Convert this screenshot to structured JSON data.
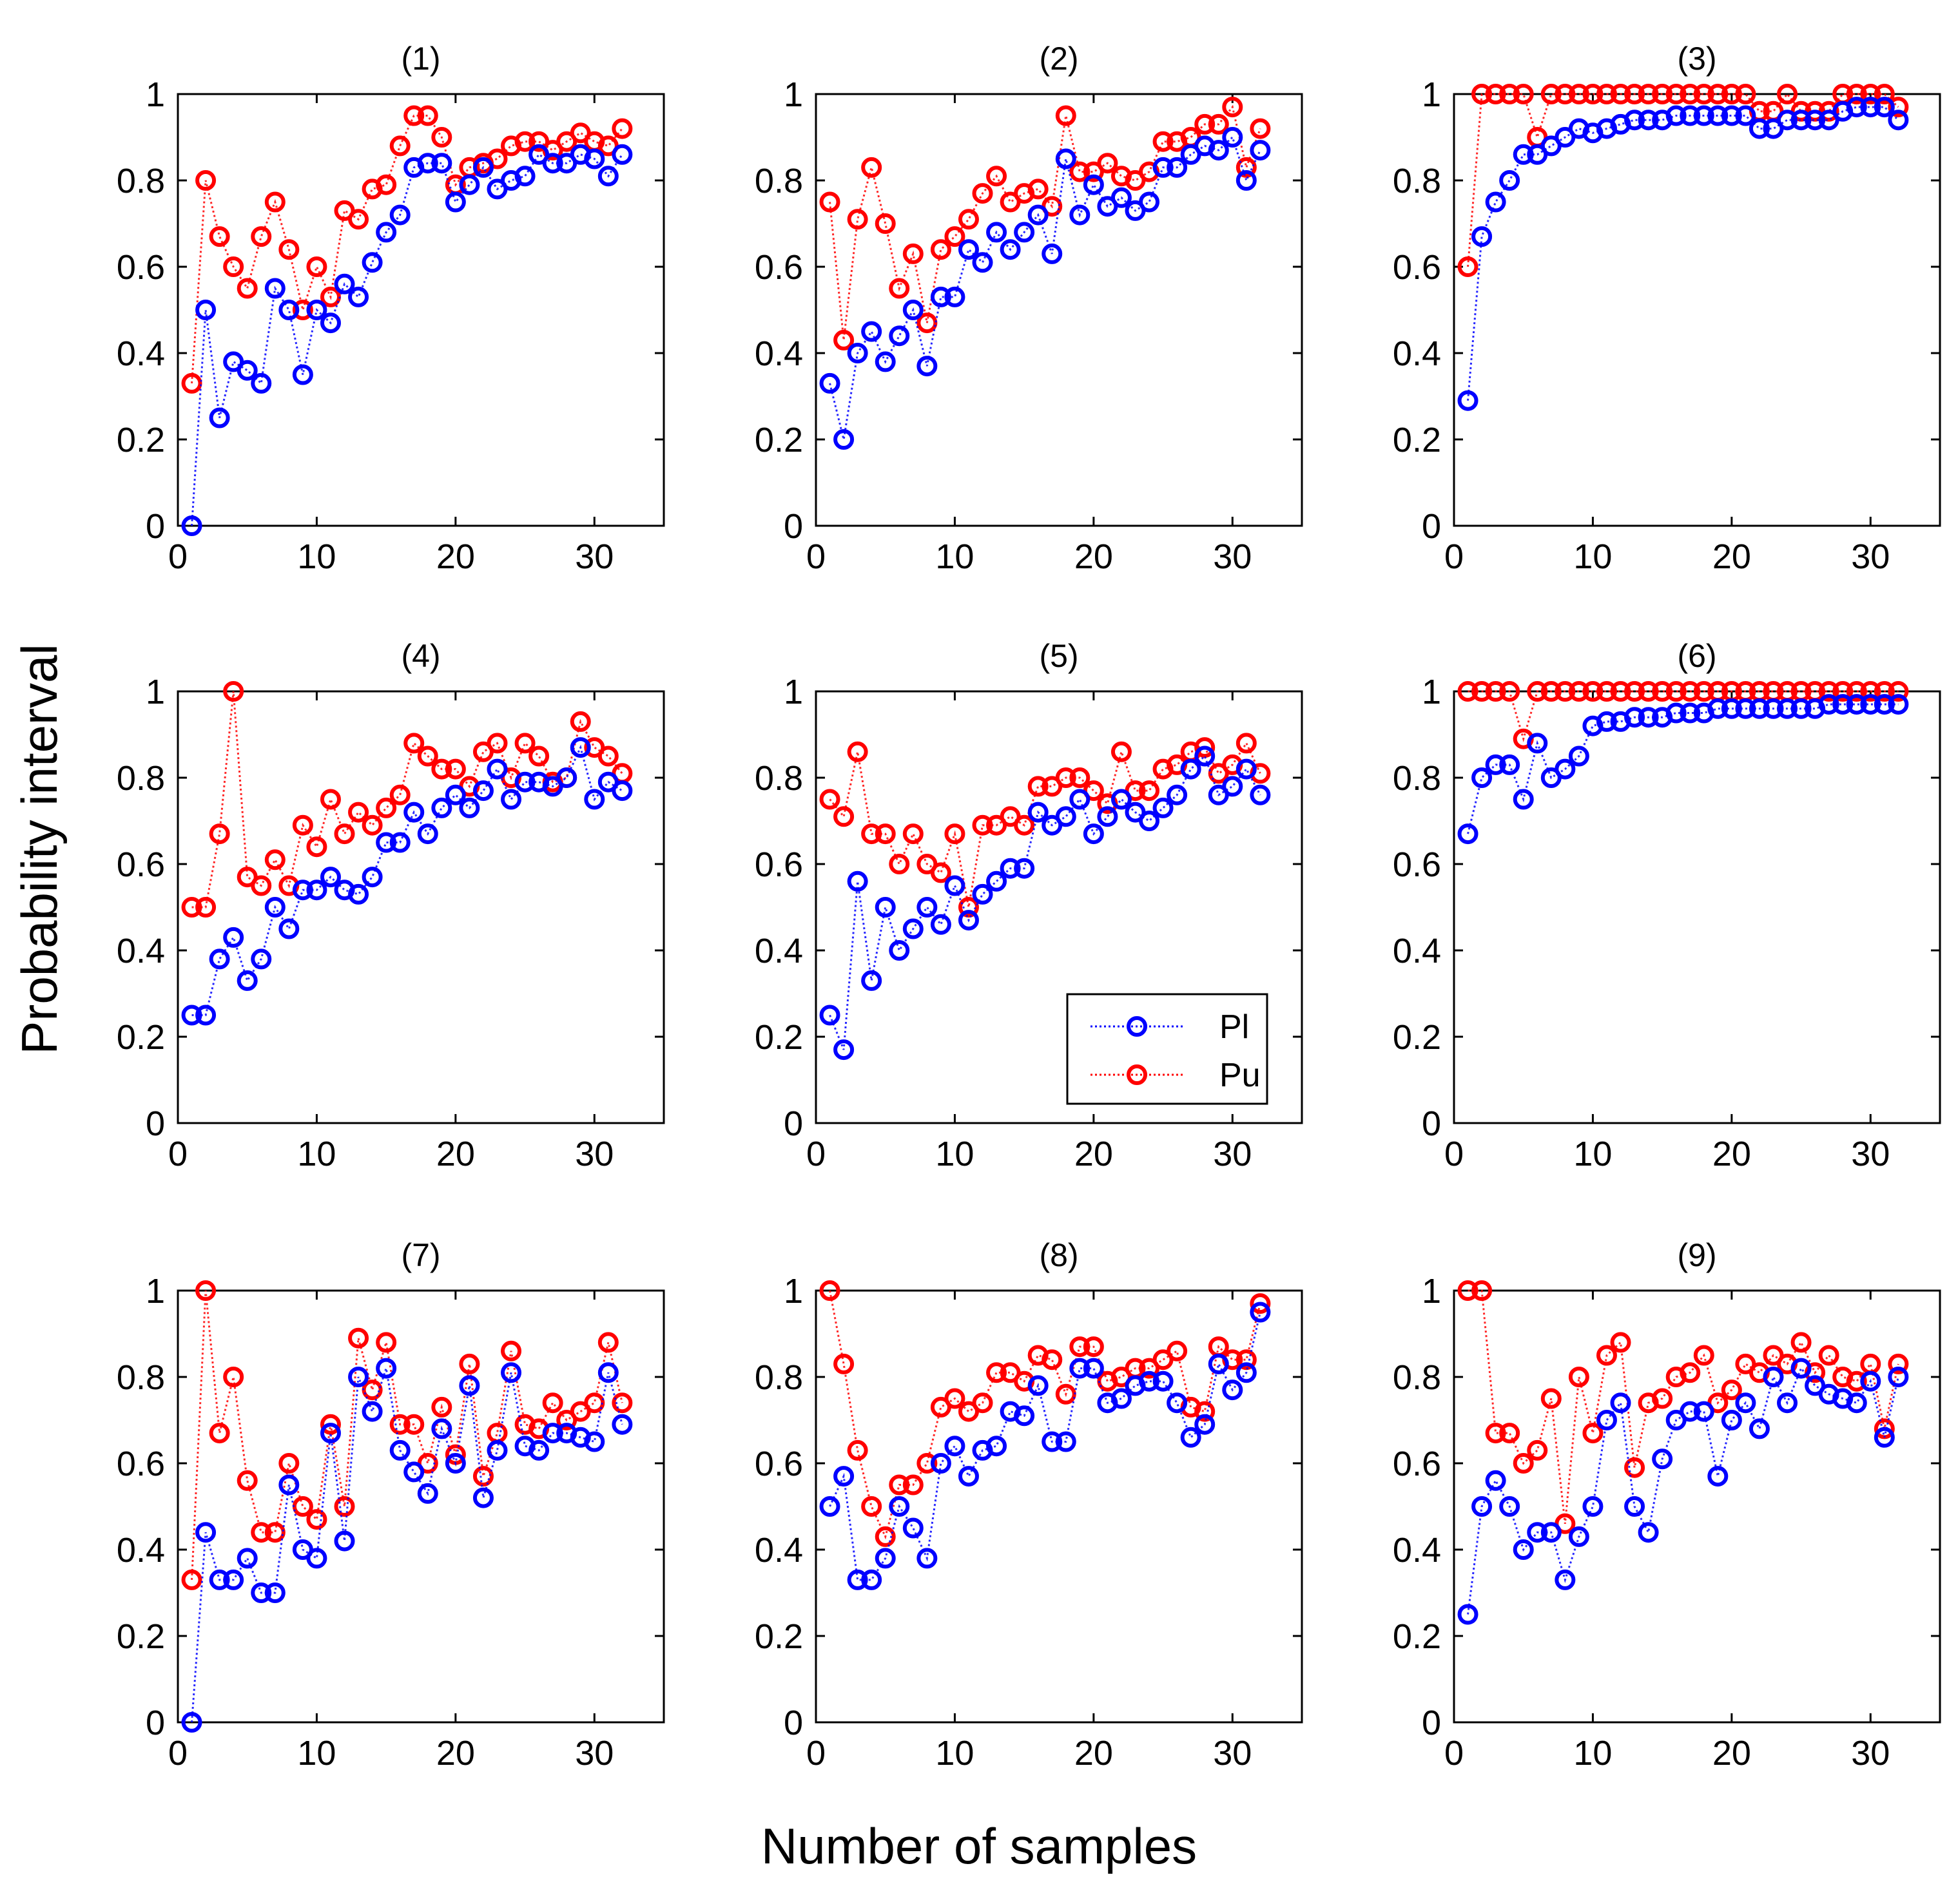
{
  "figure": {
    "ylabel": "Probability interval",
    "xlabel": "Number of samples",
    "series_colors": {
      "Pl": "#0000ff",
      "Pu": "#ff0000"
    },
    "legend": [
      {
        "name": "Pl",
        "color": "#0000ff"
      },
      {
        "name": "Pu",
        "color": "#ff0000"
      }
    ]
  },
  "chart_data": [
    {
      "type": "scatter",
      "title": "(1)",
      "xlim": [
        0,
        35
      ],
      "ylim": [
        0,
        1
      ],
      "xticks": [
        0,
        10,
        20,
        30
      ],
      "yticks": [
        0,
        0.2,
        0.4,
        0.6,
        0.8,
        1
      ],
      "x": [
        1,
        2,
        3,
        4,
        5,
        6,
        7,
        8,
        9,
        10,
        11,
        12,
        13,
        14,
        15,
        16,
        17,
        18,
        19,
        20,
        21,
        22,
        23,
        24,
        25,
        26,
        27,
        28,
        29,
        30,
        31,
        32
      ],
      "series": [
        {
          "name": "Pl",
          "values": [
            0,
            0.5,
            0.25,
            0.38,
            0.36,
            0.33,
            0.55,
            0.5,
            0.35,
            0.5,
            0.47,
            0.56,
            0.53,
            0.61,
            0.68,
            0.72,
            0.83,
            0.84,
            0.84,
            0.75,
            0.79,
            0.83,
            0.78,
            0.8,
            0.81,
            0.86,
            0.84,
            0.84,
            0.86,
            0.85,
            0.81,
            0.86
          ]
        },
        {
          "name": "Pu",
          "values": [
            0.33,
            0.8,
            0.67,
            0.6,
            0.55,
            0.67,
            0.75,
            0.64,
            0.5,
            0.6,
            0.53,
            0.73,
            0.71,
            0.78,
            0.79,
            0.88,
            0.95,
            0.95,
            0.9,
            0.79,
            0.83,
            0.84,
            0.85,
            0.88,
            0.89,
            0.89,
            0.87,
            0.89,
            0.91,
            0.89,
            0.88,
            0.92
          ]
        }
      ]
    },
    {
      "type": "scatter",
      "title": "(2)",
      "xlim": [
        0,
        35
      ],
      "ylim": [
        0,
        1
      ],
      "xticks": [
        0,
        10,
        20,
        30
      ],
      "yticks": [
        0,
        0.2,
        0.4,
        0.6,
        0.8,
        1
      ],
      "x": [
        1,
        2,
        3,
        4,
        5,
        6,
        7,
        8,
        9,
        10,
        11,
        12,
        13,
        14,
        15,
        16,
        17,
        18,
        19,
        20,
        21,
        22,
        23,
        24,
        25,
        26,
        27,
        28,
        29,
        30,
        31,
        32
      ],
      "series": [
        {
          "name": "Pl",
          "values": [
            0.33,
            0.2,
            0.4,
            0.45,
            0.38,
            0.44,
            0.5,
            0.37,
            0.53,
            0.53,
            0.64,
            0.61,
            0.68,
            0.64,
            0.68,
            0.72,
            0.63,
            0.85,
            0.72,
            0.79,
            0.74,
            0.76,
            0.73,
            0.75,
            0.83,
            0.83,
            0.86,
            0.88,
            0.87,
            0.9,
            0.8,
            0.87
          ]
        },
        {
          "name": "Pu",
          "values": [
            0.75,
            0.43,
            0.71,
            0.83,
            0.7,
            0.55,
            0.63,
            0.47,
            0.64,
            0.67,
            0.71,
            0.77,
            0.81,
            0.75,
            0.77,
            0.78,
            0.74,
            0.95,
            0.82,
            0.82,
            0.84,
            0.81,
            0.8,
            0.82,
            0.89,
            0.89,
            0.9,
            0.93,
            0.93,
            0.97,
            0.83,
            0.92
          ]
        }
      ]
    },
    {
      "type": "scatter",
      "title": "(3)",
      "xlim": [
        0,
        35
      ],
      "ylim": [
        0,
        1
      ],
      "xticks": [
        0,
        10,
        20,
        30
      ],
      "yticks": [
        0,
        0.2,
        0.4,
        0.6,
        0.8,
        1
      ],
      "x": [
        1,
        2,
        3,
        4,
        5,
        6,
        7,
        8,
        9,
        10,
        11,
        12,
        13,
        14,
        15,
        16,
        17,
        18,
        19,
        20,
        21,
        22,
        23,
        24,
        25,
        26,
        27,
        28,
        29,
        30,
        31,
        32
      ],
      "series": [
        {
          "name": "Pl",
          "values": [
            0.29,
            0.67,
            0.75,
            0.8,
            0.86,
            0.86,
            0.88,
            0.9,
            0.92,
            0.91,
            0.92,
            0.93,
            0.94,
            0.94,
            0.94,
            0.95,
            0.95,
            0.95,
            0.95,
            0.95,
            0.95,
            0.92,
            0.92,
            0.94,
            0.94,
            0.94,
            0.94,
            0.96,
            0.97,
            0.97,
            0.97,
            0.94
          ]
        },
        {
          "name": "Pu",
          "values": [
            0.6,
            1,
            1,
            1,
            1,
            0.9,
            1,
            1,
            1,
            1,
            1,
            1,
            1,
            1,
            1,
            1,
            1,
            1,
            1,
            1,
            1,
            0.96,
            0.96,
            1,
            0.96,
            0.96,
            0.96,
            1,
            1,
            1,
            1,
            0.97
          ]
        }
      ]
    },
    {
      "type": "scatter",
      "title": "(4)",
      "xlim": [
        0,
        35
      ],
      "ylim": [
        0,
        1
      ],
      "xticks": [
        0,
        10,
        20,
        30
      ],
      "yticks": [
        0,
        0.2,
        0.4,
        0.6,
        0.8,
        1
      ],
      "x": [
        1,
        2,
        3,
        4,
        5,
        6,
        7,
        8,
        9,
        10,
        11,
        12,
        13,
        14,
        15,
        16,
        17,
        18,
        19,
        20,
        21,
        22,
        23,
        24,
        25,
        26,
        27,
        28,
        29,
        30,
        31,
        32
      ],
      "series": [
        {
          "name": "Pl",
          "values": [
            0.25,
            0.25,
            0.38,
            0.43,
            0.33,
            0.38,
            0.5,
            0.45,
            0.54,
            0.54,
            0.57,
            0.54,
            0.53,
            0.57,
            0.65,
            0.65,
            0.72,
            0.67,
            0.73,
            0.76,
            0.73,
            0.77,
            0.82,
            0.75,
            0.79,
            0.79,
            0.78,
            0.8,
            0.87,
            0.75,
            0.79,
            0.77
          ]
        },
        {
          "name": "Pu",
          "values": [
            0.5,
            0.5,
            0.67,
            1,
            0.57,
            0.55,
            0.61,
            0.55,
            0.69,
            0.64,
            0.75,
            0.67,
            0.72,
            0.69,
            0.73,
            0.76,
            0.88,
            0.85,
            0.82,
            0.82,
            0.78,
            0.86,
            0.88,
            0.8,
            0.88,
            0.85,
            0.79,
            0.8,
            0.93,
            0.87,
            0.85,
            0.81
          ]
        }
      ]
    },
    {
      "type": "scatter",
      "title": "(5)",
      "xlim": [
        0,
        35
      ],
      "ylim": [
        0,
        1
      ],
      "xticks": [
        0,
        10,
        20,
        30
      ],
      "yticks": [
        0,
        0.2,
        0.4,
        0.6,
        0.8,
        1
      ],
      "x": [
        1,
        2,
        3,
        4,
        5,
        6,
        7,
        8,
        9,
        10,
        11,
        12,
        13,
        14,
        15,
        16,
        17,
        18,
        19,
        20,
        21,
        22,
        23,
        24,
        25,
        26,
        27,
        28,
        29,
        30,
        31,
        32
      ],
      "series": [
        {
          "name": "Pl",
          "values": [
            0.25,
            0.17,
            0.56,
            0.33,
            0.5,
            0.4,
            0.45,
            0.5,
            0.46,
            0.55,
            0.47,
            0.53,
            0.56,
            0.59,
            0.59,
            0.72,
            0.69,
            0.71,
            0.75,
            0.67,
            0.71,
            0.75,
            0.72,
            0.7,
            0.73,
            0.76,
            0.82,
            0.85,
            0.76,
            0.78,
            0.82,
            0.76
          ]
        },
        {
          "name": "Pu",
          "values": [
            0.75,
            0.71,
            0.86,
            0.67,
            0.67,
            0.6,
            0.67,
            0.6,
            0.58,
            0.67,
            0.5,
            0.69,
            0.69,
            0.71,
            0.69,
            0.78,
            0.78,
            0.8,
            0.8,
            0.77,
            0.74,
            0.86,
            0.77,
            0.77,
            0.82,
            0.83,
            0.86,
            0.87,
            0.81,
            0.83,
            0.88,
            0.81
          ]
        }
      ]
    },
    {
      "type": "scatter",
      "title": "(6)",
      "xlim": [
        0,
        35
      ],
      "ylim": [
        0,
        1
      ],
      "xticks": [
        0,
        10,
        20,
        30
      ],
      "yticks": [
        0,
        0.2,
        0.4,
        0.6,
        0.8,
        1
      ],
      "x": [
        1,
        2,
        3,
        4,
        5,
        6,
        7,
        8,
        9,
        10,
        11,
        12,
        13,
        14,
        15,
        16,
        17,
        18,
        19,
        20,
        21,
        22,
        23,
        24,
        25,
        26,
        27,
        28,
        29,
        30,
        31,
        32
      ],
      "series": [
        {
          "name": "Pl",
          "values": [
            0.67,
            0.8,
            0.83,
            0.83,
            0.75,
            0.88,
            0.8,
            0.82,
            0.85,
            0.92,
            0.93,
            0.93,
            0.94,
            0.94,
            0.94,
            0.95,
            0.95,
            0.95,
            0.96,
            0.96,
            0.96,
            0.96,
            0.96,
            0.96,
            0.96,
            0.96,
            0.97,
            0.97,
            0.97,
            0.97,
            0.97,
            0.97
          ]
        },
        {
          "name": "Pu",
          "values": [
            1,
            1,
            1,
            1,
            0.89,
            1,
            1,
            1,
            1,
            1,
            1,
            1,
            1,
            1,
            1,
            1,
            1,
            1,
            1,
            1,
            1,
            1,
            1,
            1,
            1,
            1,
            1,
            1,
            1,
            1,
            1,
            1
          ]
        }
      ]
    },
    {
      "type": "scatter",
      "title": "(7)",
      "xlim": [
        0,
        35
      ],
      "ylim": [
        0,
        1
      ],
      "xticks": [
        0,
        10,
        20,
        30
      ],
      "yticks": [
        0,
        0.2,
        0.4,
        0.6,
        0.8,
        1
      ],
      "x": [
        1,
        2,
        3,
        4,
        5,
        6,
        7,
        8,
        9,
        10,
        11,
        12,
        13,
        14,
        15,
        16,
        17,
        18,
        19,
        20,
        21,
        22,
        23,
        24,
        25,
        26,
        27,
        28,
        29,
        30,
        31,
        32
      ],
      "series": [
        {
          "name": "Pl",
          "values": [
            0,
            0.44,
            0.33,
            0.33,
            0.38,
            0.3,
            0.3,
            0.55,
            0.4,
            0.38,
            0.67,
            0.42,
            0.8,
            0.72,
            0.82,
            0.63,
            0.58,
            0.53,
            0.68,
            0.6,
            0.78,
            0.52,
            0.63,
            0.81,
            0.64,
            0.63,
            0.67,
            0.67,
            0.66,
            0.65,
            0.81,
            0.69
          ]
        },
        {
          "name": "Pu",
          "values": [
            0.33,
            1,
            0.67,
            0.8,
            0.56,
            0.44,
            0.44,
            0.6,
            0.5,
            0.47,
            0.69,
            0.5,
            0.89,
            0.77,
            0.88,
            0.69,
            0.69,
            0.6,
            0.73,
            0.62,
            0.83,
            0.57,
            0.67,
            0.86,
            0.69,
            0.68,
            0.74,
            0.7,
            0.72,
            0.74,
            0.88,
            0.74
          ]
        }
      ]
    },
    {
      "type": "scatter",
      "title": "(8)",
      "xlim": [
        0,
        35
      ],
      "ylim": [
        0,
        1
      ],
      "xticks": [
        0,
        10,
        20,
        30
      ],
      "yticks": [
        0,
        0.2,
        0.4,
        0.6,
        0.8,
        1
      ],
      "x": [
        1,
        2,
        3,
        4,
        5,
        6,
        7,
        8,
        9,
        10,
        11,
        12,
        13,
        14,
        15,
        16,
        17,
        18,
        19,
        20,
        21,
        22,
        23,
        24,
        25,
        26,
        27,
        28,
        29,
        30,
        31,
        32
      ],
      "series": [
        {
          "name": "Pl",
          "values": [
            0.5,
            0.57,
            0.33,
            0.33,
            0.38,
            0.5,
            0.45,
            0.38,
            0.6,
            0.64,
            0.57,
            0.63,
            0.64,
            0.72,
            0.71,
            0.78,
            0.65,
            0.65,
            0.82,
            0.82,
            0.74,
            0.75,
            0.78,
            0.79,
            0.79,
            0.74,
            0.66,
            0.69,
            0.83,
            0.77,
            0.81,
            0.95
          ]
        },
        {
          "name": "Pu",
          "values": [
            1,
            0.83,
            0.63,
            0.5,
            0.43,
            0.55,
            0.55,
            0.6,
            0.73,
            0.75,
            0.72,
            0.74,
            0.81,
            0.81,
            0.79,
            0.85,
            0.84,
            0.76,
            0.87,
            0.87,
            0.79,
            0.8,
            0.82,
            0.82,
            0.84,
            0.86,
            0.73,
            0.72,
            0.87,
            0.84,
            0.84,
            0.97
          ]
        }
      ]
    },
    {
      "type": "scatter",
      "title": "(9)",
      "xlim": [
        0,
        35
      ],
      "ylim": [
        0,
        1
      ],
      "xticks": [
        0,
        10,
        20,
        30
      ],
      "yticks": [
        0,
        0.2,
        0.4,
        0.6,
        0.8,
        1
      ],
      "x": [
        1,
        2,
        3,
        4,
        5,
        6,
        7,
        8,
        9,
        10,
        11,
        12,
        13,
        14,
        15,
        16,
        17,
        18,
        19,
        20,
        21,
        22,
        23,
        24,
        25,
        26,
        27,
        28,
        29,
        30,
        31,
        32
      ],
      "series": [
        {
          "name": "Pl",
          "values": [
            0.25,
            0.5,
            0.56,
            0.5,
            0.4,
            0.44,
            0.44,
            0.33,
            0.43,
            0.5,
            0.7,
            0.74,
            0.5,
            0.44,
            0.61,
            0.7,
            0.72,
            0.72,
            0.57,
            0.7,
            0.74,
            0.68,
            0.8,
            0.74,
            0.82,
            0.78,
            0.76,
            0.75,
            0.74,
            0.79,
            0.66,
            0.8
          ]
        },
        {
          "name": "Pu",
          "values": [
            1,
            1,
            0.67,
            0.67,
            0.6,
            0.63,
            0.75,
            0.46,
            0.8,
            0.67,
            0.85,
            0.88,
            0.59,
            0.74,
            0.75,
            0.8,
            0.81,
            0.85,
            0.74,
            0.77,
            0.83,
            0.81,
            0.85,
            0.83,
            0.88,
            0.81,
            0.85,
            0.8,
            0.79,
            0.83,
            0.68,
            0.83
          ]
        }
      ]
    }
  ]
}
